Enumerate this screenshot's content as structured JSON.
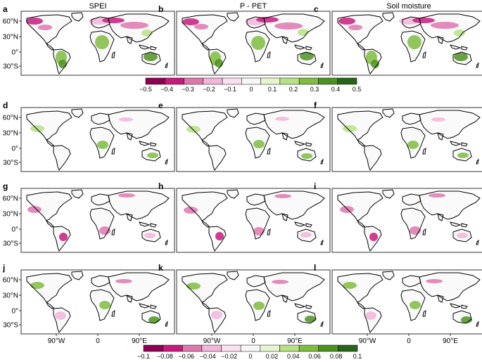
{
  "column_titles": [
    "SPEI",
    "P - PET",
    "Soil moisture"
  ],
  "panel_letters": [
    "a",
    "b",
    "c",
    "d",
    "e",
    "f",
    "g",
    "h",
    "i",
    "j",
    "k",
    "l"
  ],
  "lat_labels": [
    "60°N",
    "30°N",
    "0°",
    "30°S"
  ],
  "lon_labels": [
    "90°W",
    "0",
    "90°E"
  ],
  "colorbar_top": {
    "ticks": [
      "−0.5",
      "−0.4",
      "−0.3",
      "−0.2",
      "−0.1",
      "0",
      "0.1",
      "0.2",
      "0.3",
      "0.4",
      "0.5"
    ],
    "colors": [
      "#8e0152",
      "#c51b7d",
      "#de77ae",
      "#f1b6da",
      "#fde0ef",
      "#f7f7f7",
      "#e6f5d0",
      "#b8e186",
      "#7fbc41",
      "#4d9221",
      "#276419"
    ]
  },
  "colorbar_bottom": {
    "ticks": [
      "−0.1",
      "−0.08",
      "−0.06",
      "−0.04",
      "−0.02",
      "0",
      "0.02",
      "0.04",
      "0.06",
      "0.08",
      "0.1"
    ],
    "colors": [
      "#8e0152",
      "#c51b7d",
      "#de77ae",
      "#f1b6da",
      "#fde0ef",
      "#f7f7f7",
      "#e6f5d0",
      "#b8e186",
      "#7fbc41",
      "#4d9221",
      "#276419"
    ]
  },
  "colors": {
    "coast": "#000000",
    "frame": "#000000",
    "pink_strong": "#c51b7d",
    "pink_mid": "#de77ae",
    "pink_light": "#f1b6da",
    "green_light": "#b8e186",
    "green_mid": "#7fbc41",
    "green_strong": "#4d9221"
  }
}
